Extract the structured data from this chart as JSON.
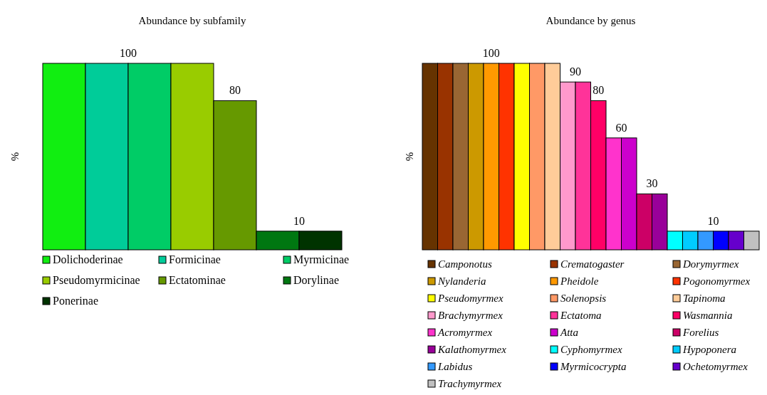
{
  "chart_data": [
    {
      "type": "bar",
      "title": "Abundance by subfamily",
      "ylabel": "%",
      "categories": [
        null
      ],
      "legend": "bottom",
      "series": [
        {
          "name": "Dolichoderinae",
          "color": "#11ee11",
          "values": [
            100
          ],
          "value_labels": [
            null
          ]
        },
        {
          "name": "Formicinae",
          "color": "#00cc99",
          "values": [
            100
          ],
          "value_labels": [
            "100"
          ]
        },
        {
          "name": "Myrmicinae",
          "color": "#00cc66",
          "values": [
            100
          ],
          "value_labels": [
            null
          ]
        },
        {
          "name": "Pseudomyrmicinae",
          "color": "#99cc00",
          "values": [
            100
          ],
          "value_labels": [
            null
          ]
        },
        {
          "name": "Ectatominae",
          "color": "#669900",
          "values": [
            80
          ],
          "value_labels": [
            "80"
          ]
        },
        {
          "name": "Dorylinae",
          "color": "#007711",
          "values": [
            10
          ],
          "value_labels": [
            "10"
          ]
        },
        {
          "name": "Ponerinae",
          "color": "#003300",
          "values": [
            10
          ],
          "value_labels": [
            null
          ]
        }
      ]
    },
    {
      "type": "bar",
      "title": "Abundance by genus",
      "ylabel": "%",
      "categories": [
        null
      ],
      "legend": "bottom",
      "series": [
        {
          "name": "Camponotus",
          "color": "#663300",
          "values": [
            100
          ],
          "value_labels": [
            null
          ]
        },
        {
          "name": "Crematogaster",
          "color": "#993300",
          "values": [
            100
          ],
          "value_labels": [
            null
          ]
        },
        {
          "name": "Dorymyrmex",
          "color": "#996633",
          "values": [
            100
          ],
          "value_labels": [
            null
          ]
        },
        {
          "name": "Nylanderia",
          "color": "#cc9900",
          "values": [
            100
          ],
          "value_labels": [
            null
          ]
        },
        {
          "name": "Pheidole",
          "color": "#ff9900",
          "values": [
            100
          ],
          "value_labels": [
            "100"
          ]
        },
        {
          "name": "Pogonomyrmex",
          "color": "#ff3300",
          "values": [
            100
          ],
          "value_labels": [
            null
          ]
        },
        {
          "name": "Pseudomyrmex",
          "color": "#ffff00",
          "values": [
            100
          ],
          "value_labels": [
            null
          ]
        },
        {
          "name": "Solenopsis",
          "color": "#ff9966",
          "values": [
            100
          ],
          "value_labels": [
            null
          ]
        },
        {
          "name": "Tapinoma",
          "color": "#ffcc99",
          "values": [
            100
          ],
          "value_labels": [
            null
          ]
        },
        {
          "name": "Brachymyrmex",
          "color": "#ff99cc",
          "values": [
            90
          ],
          "value_labels": [
            "90"
          ]
        },
        {
          "name": "Ectatoma",
          "color": "#ff3399",
          "values": [
            90
          ],
          "value_labels": [
            null
          ]
        },
        {
          "name": "Wasmannia",
          "color": "#ff0066",
          "values": [
            80
          ],
          "value_labels": [
            "80"
          ]
        },
        {
          "name": "Acromyrmex",
          "color": "#ff33cc",
          "values": [
            60
          ],
          "value_labels": [
            "60"
          ]
        },
        {
          "name": "Atta",
          "color": "#cc00cc",
          "values": [
            60
          ],
          "value_labels": [
            null
          ]
        },
        {
          "name": "Forelius",
          "color": "#cc0066",
          "values": [
            30
          ],
          "value_labels": [
            "30"
          ]
        },
        {
          "name": "Kalathomyrmex",
          "color": "#990099",
          "values": [
            30
          ],
          "value_labels": [
            null
          ]
        },
        {
          "name": "Cyphomyrmex",
          "color": "#00ffff",
          "values": [
            10
          ],
          "value_labels": [
            null
          ]
        },
        {
          "name": "Hypoponera",
          "color": "#00ccff",
          "values": [
            10
          ],
          "value_labels": [
            null
          ]
        },
        {
          "name": "Labidus",
          "color": "#3399ff",
          "values": [
            10
          ],
          "value_labels": [
            "10"
          ]
        },
        {
          "name": "Myrmicocrypta",
          "color": "#0000ff",
          "values": [
            10
          ],
          "value_labels": [
            null
          ]
        },
        {
          "name": "Ochetomyrmex",
          "color": "#6600cc",
          "values": [
            10
          ],
          "value_labels": [
            null
          ]
        },
        {
          "name": "Trachymyrmex",
          "color": "#c0c0c0",
          "values": [
            10
          ],
          "value_labels": [
            null
          ]
        }
      ]
    }
  ]
}
